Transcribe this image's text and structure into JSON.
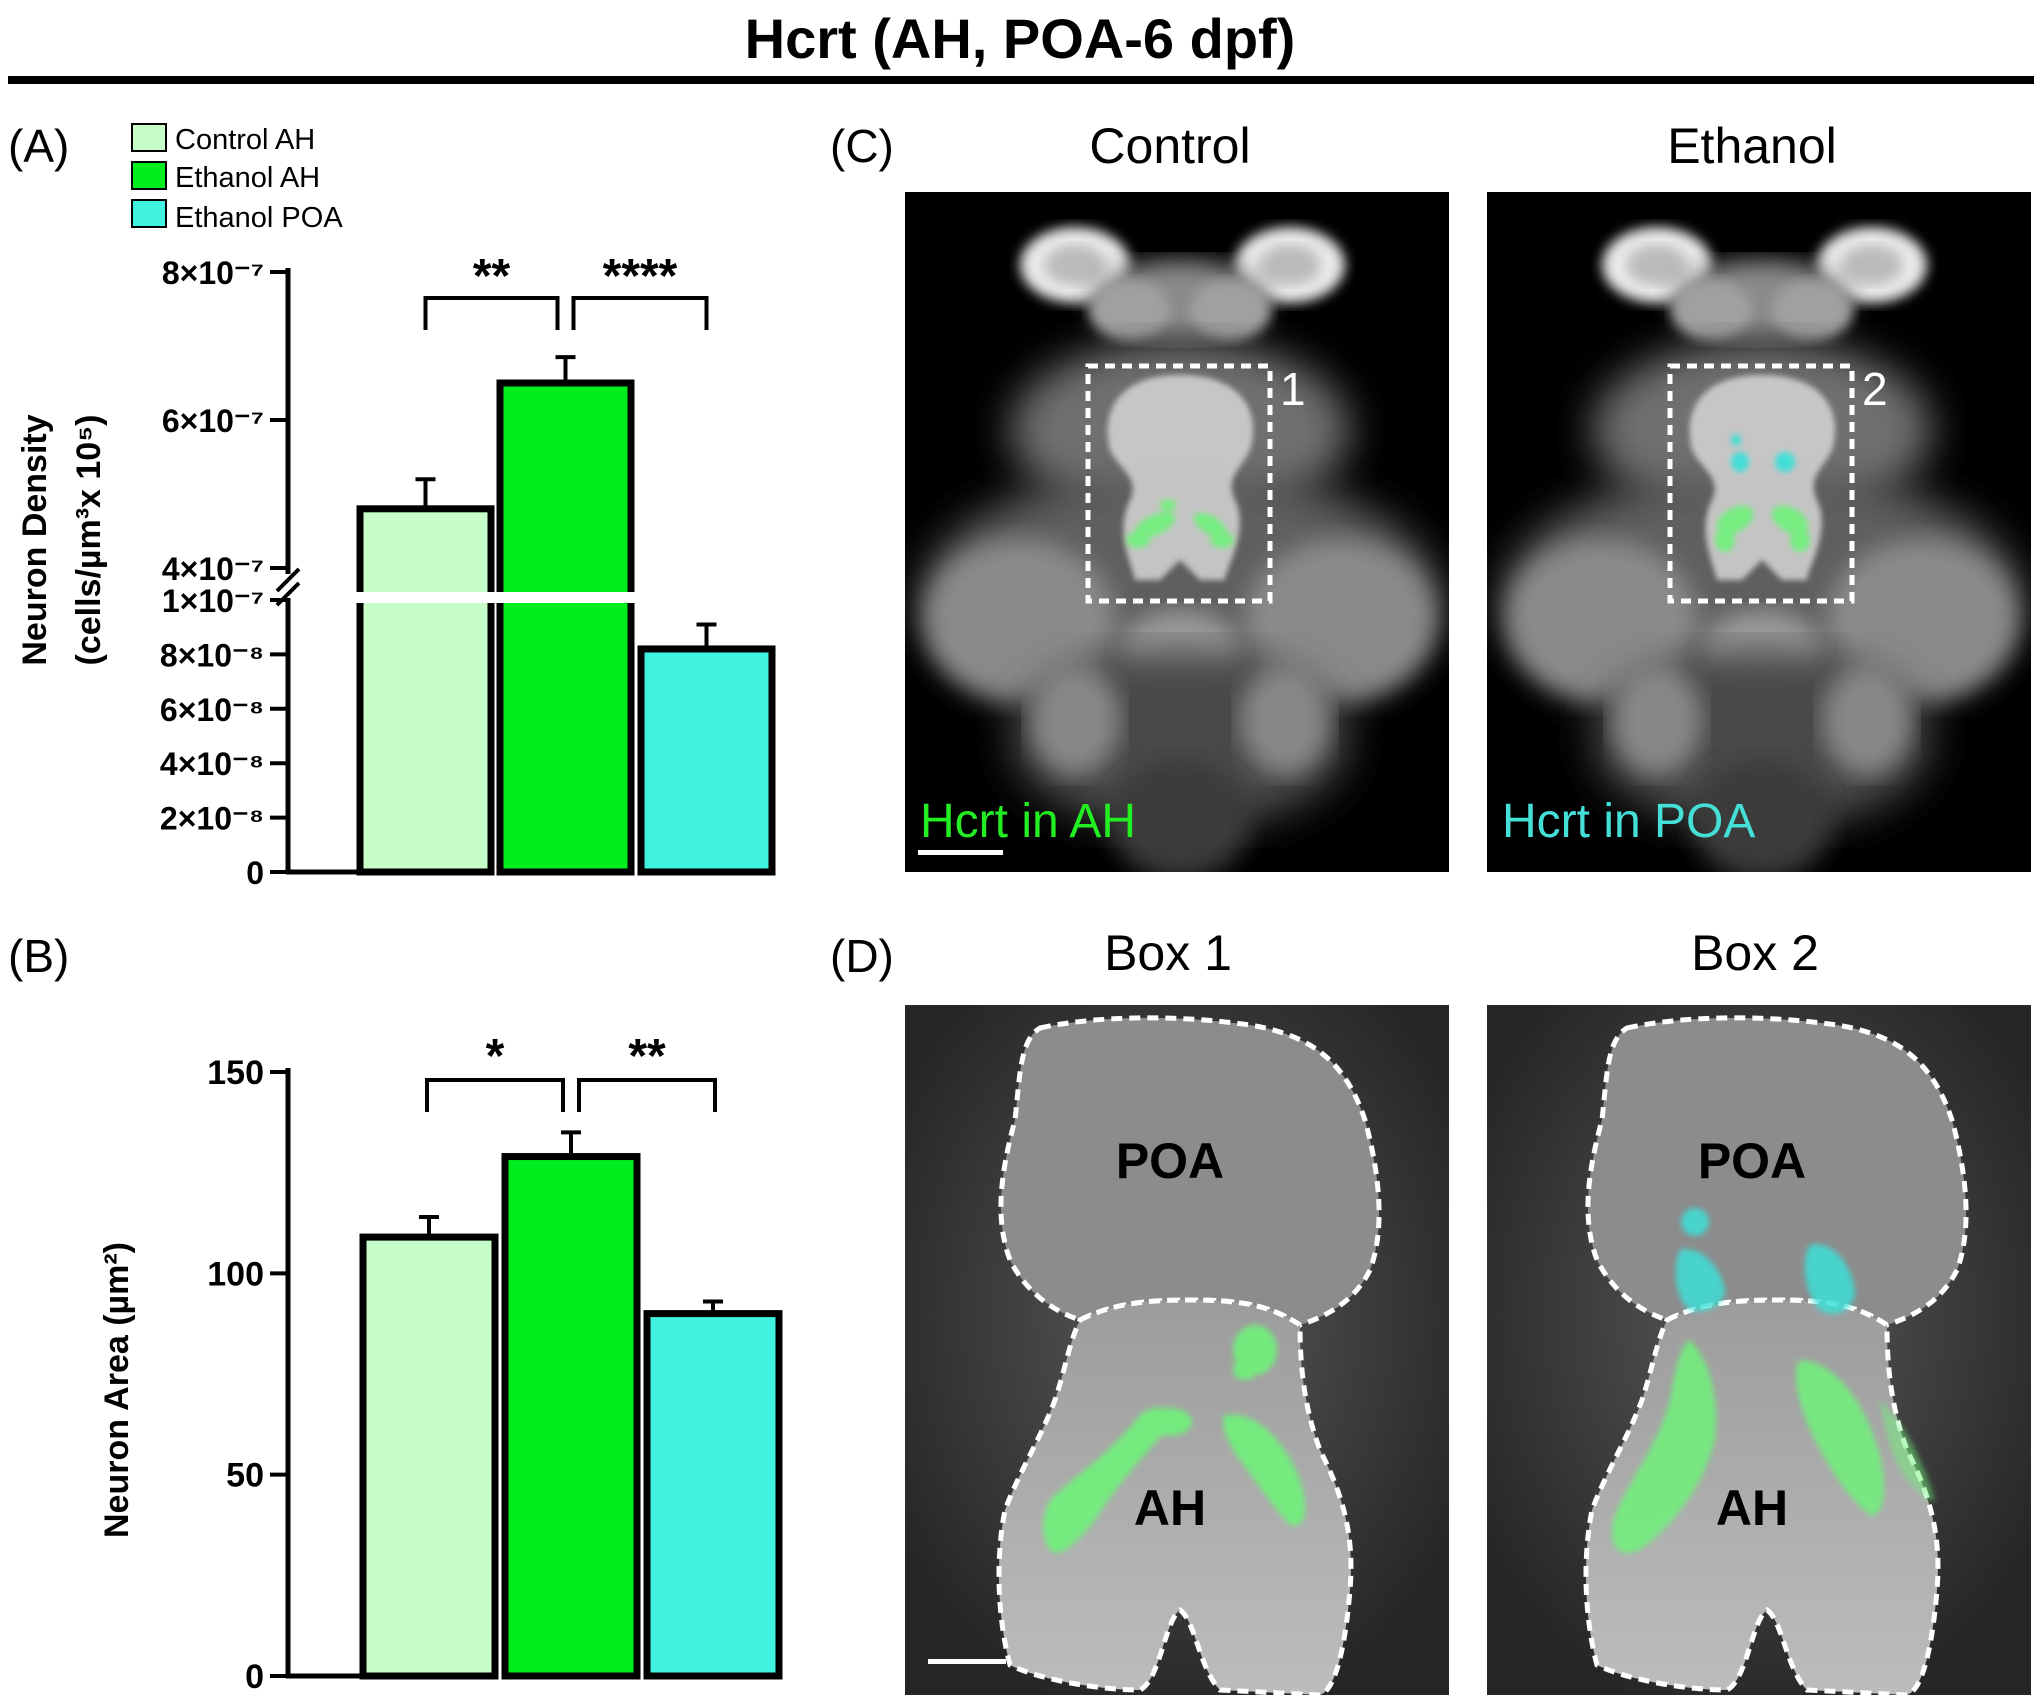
{
  "title": "Hcrt (AH, POA-6 dpf)",
  "panels": {
    "a": "(A)",
    "b": "(B)",
    "c": "(C)",
    "d": "(D)"
  },
  "legend": [
    {
      "label": "Control AH",
      "color": "#c6fdc8"
    },
    {
      "label": "Ethanol AH",
      "color": "#00ee1e"
    },
    {
      "label": "Ethanol POA",
      "color": "#40f2e0"
    }
  ],
  "chart_data": [
    {
      "type": "bar",
      "panel": "(A)",
      "categories": [
        "Control AH",
        "Ethanol AH",
        "Ethanol POA"
      ],
      "values": [
        4.8e-07,
        6.5e-07,
        8.2e-08
      ],
      "errors": [
        4e-08,
        3.5e-08,
        9e-09
      ],
      "ylabel_line1": "Neuron Density",
      "ylabel_line2": "(cells/µm³x 10⁵)",
      "axis_broken": true,
      "lower_segment": {
        "ylim": [
          0,
          1e-07
        ],
        "ticks": [
          "0",
          "2×10⁻⁸",
          "4×10⁻⁸",
          "6×10⁻⁸",
          "8×10⁻⁸",
          "1×10⁻⁷"
        ]
      },
      "upper_segment": {
        "ylim": [
          3e-07,
          8e-07
        ],
        "ticks": [
          "4×10⁻⁷",
          "6×10⁻⁷",
          "8×10⁻⁷"
        ]
      },
      "significance": [
        {
          "from": 0,
          "to": 1,
          "label": "**"
        },
        {
          "from": 1,
          "to": 2,
          "label": "****"
        }
      ]
    },
    {
      "type": "bar",
      "panel": "(B)",
      "categories": [
        "Control AH",
        "Ethanol AH",
        "Ethanol POA"
      ],
      "values": [
        109,
        129,
        90
      ],
      "errors": [
        5,
        6,
        3
      ],
      "ylabel": "Neuron Area (µm²)",
      "ylim": [
        0,
        150
      ],
      "ticks": [
        "0",
        "50",
        "100",
        "150"
      ],
      "significance": [
        {
          "from": 0,
          "to": 1,
          "label": "*"
        },
        {
          "from": 1,
          "to": 2,
          "label": "**"
        }
      ]
    }
  ],
  "images": {
    "c_control_title": "Control",
    "c_ethanol_title": "Ethanol",
    "c_control_caption": "Hcrt in AH",
    "c_ethanol_caption": "Hcrt in POA",
    "c_box1": "1",
    "c_box2": "2",
    "d_box1_title": "Box 1",
    "d_box2_title": "Box 2",
    "poa": "POA",
    "ah": "AH"
  },
  "colors": {
    "ah_green": "#22ee33",
    "poa_cyan": "#3ee0d8",
    "caption_green": "#22ee22",
    "caption_cyan": "#44e0d8"
  }
}
